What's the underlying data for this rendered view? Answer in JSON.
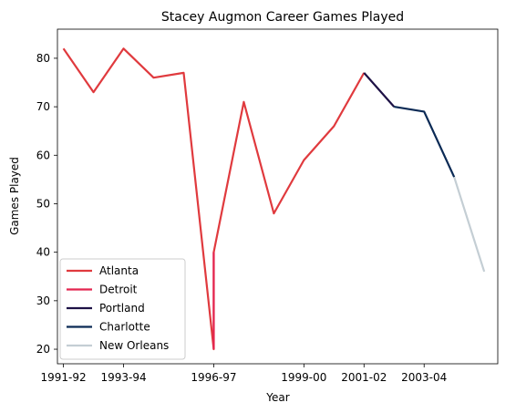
{
  "chart_data": {
    "type": "line",
    "title": "Stacey Augmon Career Games Played",
    "xlabel": "Year",
    "ylabel": "Games Played",
    "xticks": [
      "1991-92",
      "1993-94",
      "1996-97",
      "1999-00",
      "2001-02",
      "2003-04"
    ],
    "ylim": [
      17,
      86
    ],
    "yticks": [
      20,
      30,
      40,
      50,
      60,
      70,
      80
    ],
    "grid": false,
    "legend_position": "lower-left",
    "series": [
      {
        "name": "Atlanta",
        "color": "#e03a3e",
        "points": [
          {
            "x": "1991-92",
            "y": 82
          },
          {
            "x": "1992-93",
            "y": 73
          },
          {
            "x": "1993-94",
            "y": 82
          },
          {
            "x": "1994-95",
            "y": 76
          },
          {
            "x": "1995-96",
            "y": 77
          },
          {
            "x": "1996-97",
            "y": 20
          },
          {
            "x": "1996-97",
            "y": 40
          },
          {
            "x": "1997-98",
            "y": 71
          },
          {
            "x": "1998-99",
            "y": 48
          },
          {
            "x": "1999-00",
            "y": 59
          },
          {
            "x": "2000-01",
            "y": 66
          },
          {
            "x": "2001-02",
            "y": 77
          }
        ]
      },
      {
        "name": "Detroit",
        "color": "#e4254f",
        "points": [
          {
            "x": "1996-97",
            "y": 20
          },
          {
            "x": "1996-97",
            "y": 40
          }
        ]
      },
      {
        "name": "Portland",
        "color": "#1d1145",
        "points": [
          {
            "x": "2001-02",
            "y": 77
          },
          {
            "x": "2002-03",
            "y": 70
          }
        ]
      },
      {
        "name": "Charlotte",
        "color": "#0b2a55",
        "points": [
          {
            "x": "2002-03",
            "y": 70
          },
          {
            "x": "2003-04",
            "y": 69
          },
          {
            "x": "2004-05",
            "y": 55.5
          }
        ]
      },
      {
        "name": "New Orleans",
        "color": "#c4ced4",
        "points": [
          {
            "x": "2004-05",
            "y": 55.5
          },
          {
            "x": "2005-06",
            "y": 36
          }
        ]
      }
    ]
  }
}
